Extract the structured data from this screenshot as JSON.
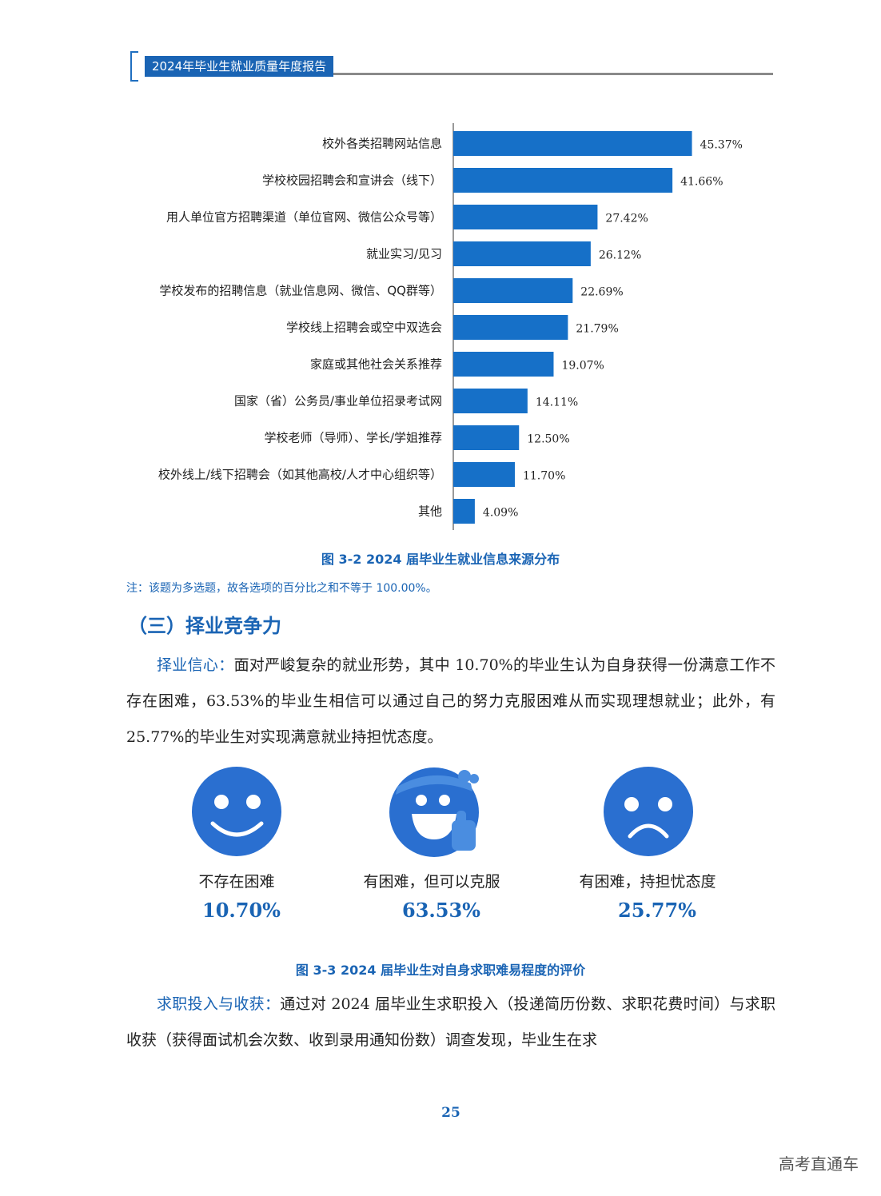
{
  "header": {
    "title": "2024年毕业生就业质量年度报告"
  },
  "chart_data": {
    "type": "bar",
    "orientation": "horizontal",
    "categories": [
      "校外各类招聘网站信息",
      "学校校园招聘会和宣讲会（线下）",
      "用人单位官方招聘渠道（单位官网、微信公众号等）",
      "就业实习/见习",
      "学校发布的招聘信息（就业信息网、微信、QQ群等）",
      "学校线上招聘会或空中双选会",
      "家庭或其他社会关系推荐",
      "国家（省）公务员/事业单位招录考试网",
      "学校老师（导师）、学长/学姐推荐",
      "校外线上/线下招聘会（如其他高校/人才中心组织等）",
      "其他"
    ],
    "values": [
      45.37,
      41.66,
      27.42,
      26.12,
      22.69,
      21.79,
      19.07,
      14.11,
      12.5,
      11.7,
      4.09
    ],
    "value_labels": [
      "45.37%",
      "41.66%",
      "27.42%",
      "26.12%",
      "22.69%",
      "21.79%",
      "19.07%",
      "14.11%",
      "12.50%",
      "11.70%",
      "4.09%"
    ],
    "xlim": [
      0,
      50
    ],
    "color": "#1670c8",
    "grid": false
  },
  "figure1": {
    "caption": "图 3-2  2024 届毕业生就业信息来源分布",
    "note": "注：该题为多选题，故各选项的百分比之和不等于 100.00%。"
  },
  "section": {
    "title": "（三）择业竞争力"
  },
  "para1": {
    "lead": "择业信心：",
    "text": "面对严峻复杂的就业形势，其中 10.70%的毕业生认为自身获得一份满意工作不存在困难，63.53%的毕业生相信可以通过自己的努力克服困难从而实现理想就业；此外，有 25.77%的毕业生对实现满意就业持担忧态度。"
  },
  "faces": [
    {
      "icon": "smiley-face-icon",
      "label": "不存在困难",
      "percent": "10.70%"
    },
    {
      "icon": "thumbs-up-face-icon",
      "label": "有困难，但可以克服",
      "percent": "63.53%"
    },
    {
      "icon": "sad-face-icon",
      "label": "有困难，持担忧态度",
      "percent": "25.77%"
    }
  ],
  "figure2": {
    "caption": "图 3-3  2024 届毕业生对自身求职难易程度的评价"
  },
  "para2": {
    "lead": "求职投入与收获：",
    "text": "通过对 2024 届毕业生求职投入（投递简历份数、求职花费时间）与求职收获（获得面试机会次数、收到录用通知份数）调查发现，毕业生在求"
  },
  "page_number": "25",
  "watermark": "高考直通车",
  "colors": {
    "accent": "#1a64b4",
    "face": "#2a6fd0"
  }
}
